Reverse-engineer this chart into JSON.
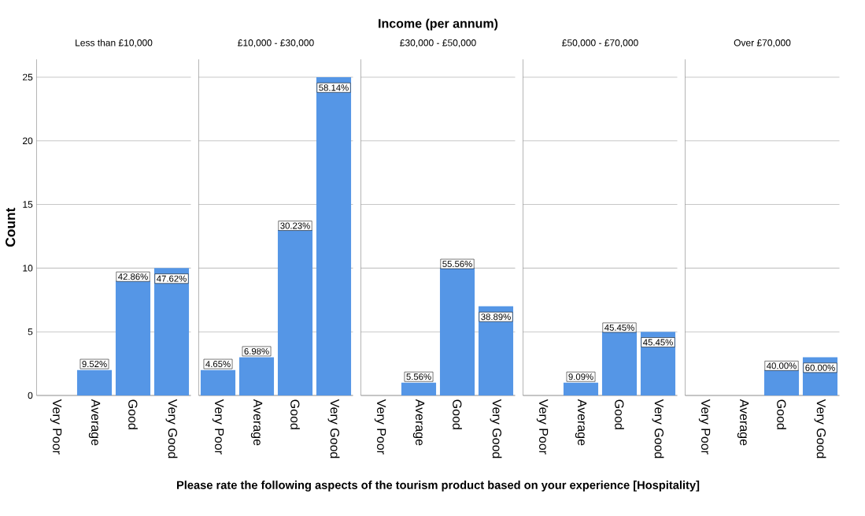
{
  "chart_data": [
    {
      "type": "bar",
      "title": "Less than £10,000",
      "ylabel": "Count",
      "categories": [
        "Very Poor",
        "Average",
        "Good",
        "Very Good"
      ],
      "values": [
        0,
        2,
        9,
        10
      ],
      "color": "#5596e6",
      "ylim": [
        0,
        26.4
      ],
      "yticks": [
        0,
        5,
        10,
        15,
        20,
        25
      ],
      "grid": "y",
      "annotations": [
        {
          "text": "9.52%",
          "x": "Average",
          "y": 2
        },
        {
          "text": "42.86%",
          "x": "Good",
          "y": 9
        },
        {
          "text": "47.62%",
          "x": "Very Good",
          "y": 10
        }
      ]
    },
    {
      "type": "bar",
      "title": "£10,000 - £30,000",
      "categories": [
        "Very Poor",
        "Average",
        "Good",
        "Very Good"
      ],
      "values": [
        2,
        3,
        13,
        25
      ],
      "color": "#5596e6",
      "ylim": [
        0,
        26.4
      ],
      "yticks": [
        0,
        5,
        10,
        15,
        20,
        25
      ],
      "grid": "y",
      "tick_labels": "x",
      "annotations": [
        {
          "text": "4.65%",
          "x": "Very Poor",
          "y": 2
        },
        {
          "text": "6.98%",
          "x": "Average",
          "y": 3
        },
        {
          "text": "30.23%",
          "x": "Good",
          "y": 13
        },
        {
          "text": "58.14%",
          "x": "Very Good",
          "y": 25
        }
      ]
    },
    {
      "type": "bar",
      "title": "£30,000 - £50,000",
      "xlabel": "Please rate the following aspects of the tourism product based on your experience [Hospitality]",
      "categories": [
        "Very Poor",
        "Average",
        "Good",
        "Very Good"
      ],
      "values": [
        0,
        1,
        10,
        7
      ],
      "color": "#5596e6",
      "ylim": [
        0,
        26.4
      ],
      "yticks": [
        0,
        5,
        10,
        15,
        20,
        25
      ],
      "grid": "y",
      "tick_labels": "x",
      "annotations": [
        "Income (per annum)",
        {
          "text": "5.56%",
          "x": "Average",
          "y": 1
        },
        {
          "text": "55.56%",
          "x": "Good",
          "y": 10
        },
        {
          "text": "38.89%",
          "x": "Very Good",
          "y": 7
        }
      ]
    },
    {
      "type": "bar",
      "title": "£50,000 - £70,000",
      "categories": [
        "Very Poor",
        "Average",
        "Good",
        "Very Good"
      ],
      "values": [
        0,
        1,
        5,
        5
      ],
      "color": "#5596e6",
      "ylim": [
        0,
        26.4
      ],
      "yticks": [
        0,
        5,
        10,
        15,
        20,
        25
      ],
      "grid": "y",
      "tick_labels": "x",
      "annotations": [
        {
          "text": "9.09%",
          "x": "Average",
          "y": 1
        },
        {
          "text": "45.45%",
          "x": "Good",
          "y": 5
        },
        {
          "text": "45.45%",
          "x": "Very Good",
          "y": 5
        }
      ]
    },
    {
      "type": "bar",
      "title": "Over £70,000",
      "categories": [
        "Very Poor",
        "Average",
        "Good",
        "Very Good"
      ],
      "values": [
        0,
        0,
        2,
        3
      ],
      "color": "#5596e6",
      "ylim": [
        0,
        26.4
      ],
      "yticks": [
        0,
        5,
        10,
        15,
        20,
        25
      ],
      "grid": "y",
      "tick_labels": "x",
      "annotations": [
        {
          "text": "40.00%",
          "x": "Good",
          "y": 2
        },
        {
          "text": "60.00%",
          "x": "Very Good",
          "y": 3
        }
      ]
    }
  ]
}
